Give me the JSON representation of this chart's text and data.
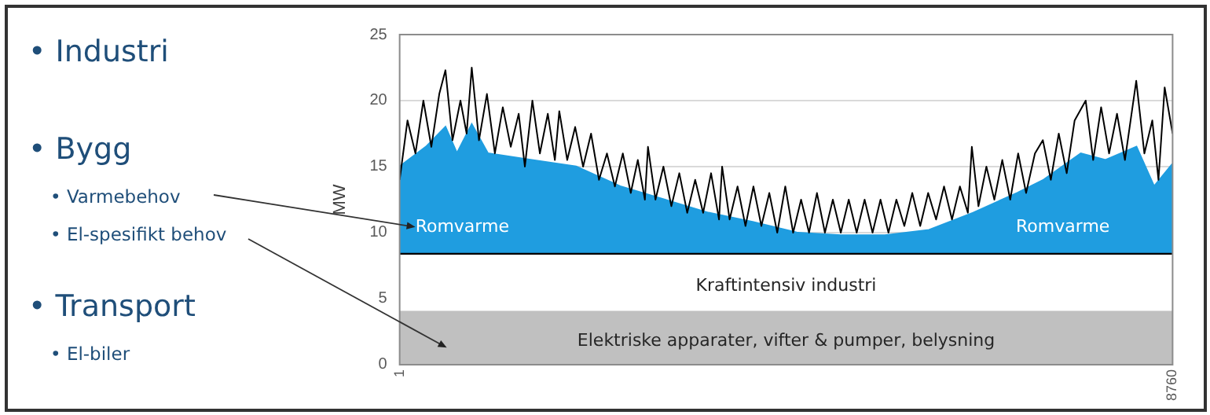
{
  "chart_data": {
    "type": "area",
    "stacked": true,
    "ylabel": "MW",
    "x": [
      1,
      300,
      520,
      650,
      818,
      1000,
      1500,
      2000,
      2500,
      3000,
      3500,
      4000,
      4500,
      5000,
      5500,
      6000,
      6500,
      7000,
      7300,
      7720,
      8000,
      8350,
      8550,
      8760
    ],
    "xlim": [
      1,
      8760
    ],
    "xticks": [
      1,
      8760
    ],
    "ylim": [
      0,
      25
    ],
    "yticks": [
      0,
      5,
      10,
      15,
      20,
      25
    ],
    "grid": "y",
    "series": [
      {
        "name": "Elektriske apparater, vifter & pumper, belysning",
        "color": "#c0c0c0",
        "values": [
          4,
          4,
          4,
          4,
          4,
          4,
          4,
          4,
          4,
          4,
          4,
          4,
          4,
          4,
          4,
          4,
          4,
          4,
          4,
          4,
          4,
          4,
          4,
          4
        ]
      },
      {
        "name": "Kraftintensiv industri",
        "color": "#ffffff",
        "values": [
          4.4,
          4.4,
          4.4,
          4.4,
          4.4,
          4.4,
          4.4,
          4.4,
          4.4,
          4.4,
          4.4,
          4.4,
          4.4,
          4.4,
          4.4,
          4.4,
          4.4,
          4.4,
          4.4,
          4.4,
          4.4,
          4.4,
          4.4,
          4.4
        ]
      },
      {
        "name": "Romvarme",
        "color": "#1f9de0",
        "values": [
          6.6,
          8.1,
          9.6,
          7.6,
          9.8,
          7.6,
          7.1,
          6.6,
          5.1,
          4.1,
          3.1,
          2.4,
          1.6,
          1.4,
          1.4,
          1.8,
          3.1,
          4.6,
          5.6,
          7.6,
          7.1,
          8.1,
          5.1,
          6.8
        ]
      },
      {
        "type": "line",
        "color": "#000000",
        "x": [
          1,
          90,
          180,
          270,
          360,
          450,
          520,
          600,
          690,
          760,
          818,
          900,
          990,
          1080,
          1170,
          1260,
          1350,
          1420,
          1505,
          1590,
          1680,
          1760,
          1810,
          1900,
          1990,
          2080,
          2170,
          2260,
          2350,
          2440,
          2530,
          2620,
          2700,
          2780,
          2815,
          2900,
          2990,
          3080,
          3170,
          3260,
          3350,
          3440,
          3530,
          3620,
          3655,
          3740,
          3830,
          3920,
          4010,
          4100,
          4190,
          4280,
          4371,
          4460,
          4550,
          4640,
          4730,
          4820,
          4910,
          5000,
          5090,
          5180,
          5270,
          5360,
          5450,
          5540,
          5630,
          5720,
          5810,
          5900,
          5990,
          6080,
          6170,
          6260,
          6350,
          6440,
          6485,
          6560,
          6650,
          6740,
          6830,
          6920,
          7010,
          7100,
          7200,
          7290,
          7380,
          7470,
          7560,
          7650,
          7775,
          7860,
          7950,
          8040,
          8130,
          8220,
          8348,
          8440,
          8530,
          8600,
          8670,
          8760
        ],
        "values": [
          14.0,
          18.5,
          16.0,
          20.0,
          16.5,
          20.5,
          22.3,
          17.0,
          20.0,
          17.5,
          22.5,
          17.0,
          20.5,
          16.0,
          19.5,
          16.5,
          19.0,
          15.0,
          20.0,
          16.0,
          19.0,
          15.5,
          19.2,
          15.5,
          18.0,
          15.0,
          17.5,
          14.0,
          16.0,
          13.5,
          16.0,
          13.0,
          15.5,
          12.5,
          16.5,
          12.5,
          15.0,
          12.0,
          14.5,
          11.5,
          14.0,
          11.5,
          14.5,
          11.0,
          15.0,
          11.0,
          13.5,
          10.5,
          13.5,
          10.5,
          13.0,
          10.0,
          13.5,
          10.0,
          12.5,
          10.0,
          13.0,
          10.0,
          12.5,
          10.0,
          12.5,
          10.0,
          12.5,
          10.0,
          12.5,
          10.0,
          12.5,
          10.5,
          13.0,
          10.5,
          13.0,
          11.0,
          13.5,
          11.0,
          13.5,
          11.5,
          16.5,
          12.0,
          15.0,
          12.5,
          15.5,
          12.5,
          16.0,
          13.0,
          16.0,
          17.0,
          14.0,
          17.5,
          14.5,
          18.5,
          20.0,
          15.5,
          19.5,
          16.0,
          19.0,
          15.5,
          21.5,
          16.0,
          18.5,
          14.0,
          21.0,
          17.5
        ]
      }
    ],
    "annotations": [
      "• Industri",
      "• Bygg",
      "• Varmebehov",
      "• El-spesifikt behov",
      "• Transport",
      "• El-biler"
    ]
  }
}
